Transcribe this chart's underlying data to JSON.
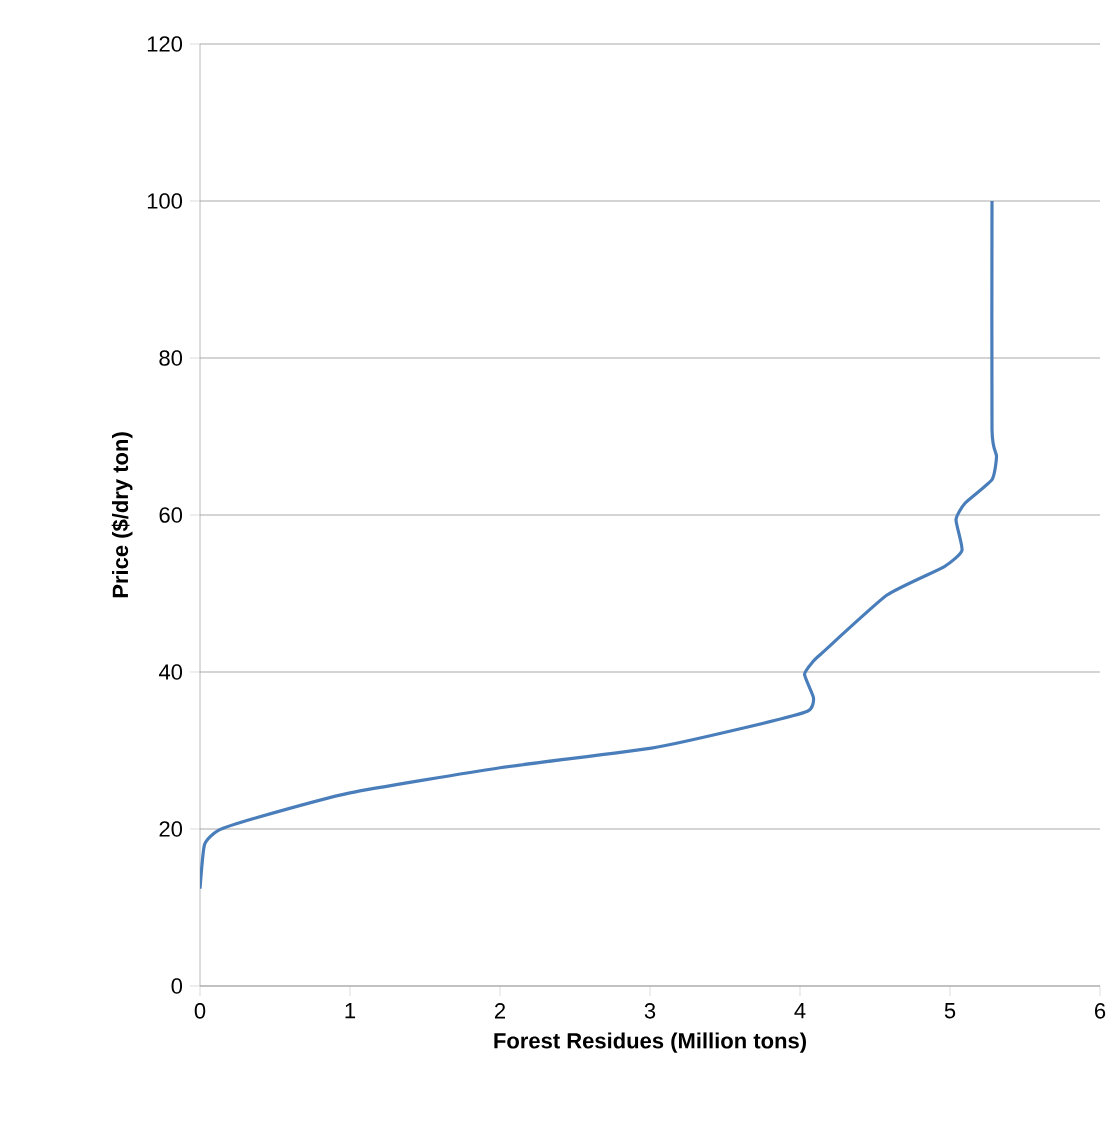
{
  "chart_data": {
    "type": "line",
    "xlabel": "Forest Residues (Million tons)",
    "ylabel": "Price ($/dry ton)",
    "series": [
      {
        "color": "#4a7ebb",
        "x": [
          0,
          0.03,
          0.12,
          0.37,
          1.0,
          2.0,
          3.01,
          3.63,
          4.05,
          4.09,
          4.03,
          4.09,
          4.14,
          4.58,
          4.96,
          5.08,
          5.04,
          5.1,
          5.28,
          5.31,
          5.28,
          5.28
        ],
        "values": [
          12.4,
          18,
          19.8,
          21.4,
          24.6,
          27.8,
          30.3,
          32.9,
          35.0,
          36.7,
          39.7,
          41.4,
          42.3,
          49.8,
          53.4,
          55.5,
          59.4,
          61.5,
          64.5,
          67.5,
          70.9,
          100
        ]
      }
    ],
    "xlim": [
      0,
      6
    ],
    "xticks": [
      0,
      1,
      2,
      3,
      4,
      5,
      6
    ],
    "ylim": [
      0,
      120
    ],
    "yticks": [
      0,
      20,
      40,
      60,
      80,
      100,
      120
    ],
    "grid": "y",
    "marker": "none",
    "line_style": "solid"
  }
}
